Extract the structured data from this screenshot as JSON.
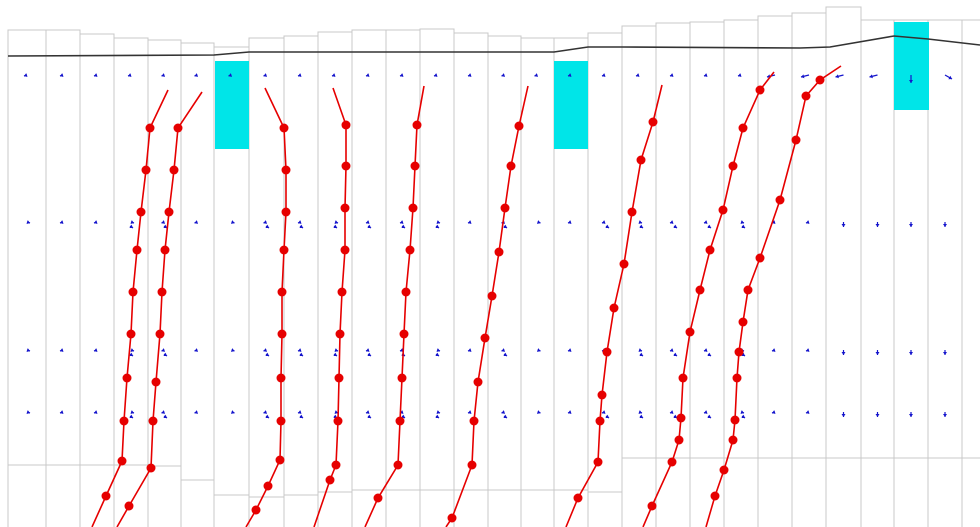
{
  "figure": {
    "description_free": true,
    "colors": {
      "background": "#ffffff",
      "column_outline": "#c8c8c8",
      "ground_surface": "#333333",
      "pile": "#e60000",
      "pile_nodes": "#e60000",
      "displacement_vectors": "#1414cc",
      "highlight_blocks": "#00e5e8"
    },
    "highlight_block_count": 3,
    "pile_count": 9,
    "vector_rows": 4,
    "icons": [
      "displacement-arrow-icon",
      "pile-node-icon"
    ]
  }
}
